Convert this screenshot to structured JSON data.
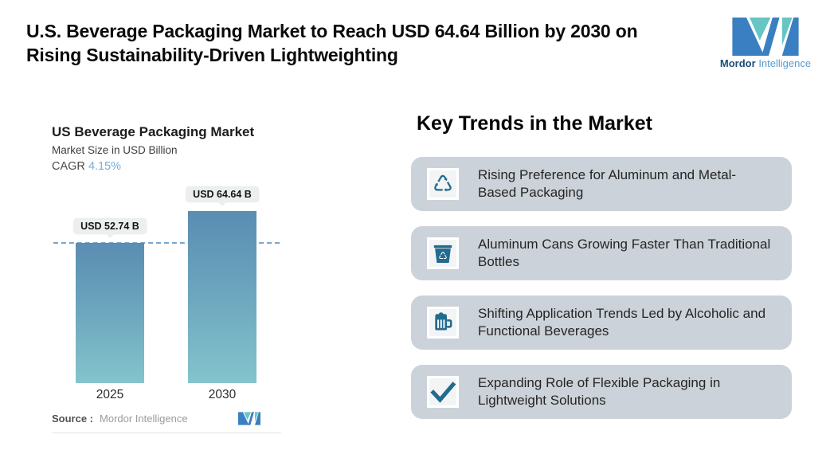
{
  "header": {
    "title": "U.S. Beverage Packaging Market to Reach USD 64.64 Billion by 2030 on\nRising Sustainability-Driven Lightweighting",
    "brand": {
      "name_bold": "Mordor",
      "name_light": "Intelligence"
    }
  },
  "chart_data": {
    "type": "bar",
    "title": "US Beverage Packaging Market",
    "subtitle": "Market Size in USD Billion",
    "cagr_label": "CAGR",
    "cagr_value": "4.15%",
    "categories": [
      "2025",
      "2030"
    ],
    "values": [
      52.74,
      64.64
    ],
    "value_labels": [
      "USD 52.74 B",
      "USD 64.64 B"
    ],
    "unit": "USD Billion",
    "reference_line_value": 52.74,
    "grid": false,
    "legend": "none",
    "source_label": "Source :",
    "source_value": "Mordor Intelligence"
  },
  "trends": {
    "heading": "Key Trends in the Market",
    "items": [
      {
        "icon": "recycle-icon",
        "text": "Rising Preference for Aluminum and Metal-\nBased Packaging"
      },
      {
        "icon": "recycle-bin-icon",
        "text": "Aluminum Cans Growing Faster Than Traditional\nBottles"
      },
      {
        "icon": "beer-mug-icon",
        "text": "Shifting Application Trends Led by Alcoholic and\nFunctional Beverages"
      },
      {
        "icon": "checkmark-icon",
        "text": "Expanding Role of Flexible Packaging in\nLightweight Solutions"
      }
    ]
  },
  "colors": {
    "bar_gradient_top": "#5a8db2",
    "bar_gradient_bottom": "#83c4cc",
    "dashed_line": "#78a6cc",
    "card_background": "#ccd2d9",
    "icon_accent": "#226a8e",
    "cagr_accent": "#75aed6",
    "brand_blue": "#3a7fc1",
    "brand_teal": "#67c5c4"
  }
}
